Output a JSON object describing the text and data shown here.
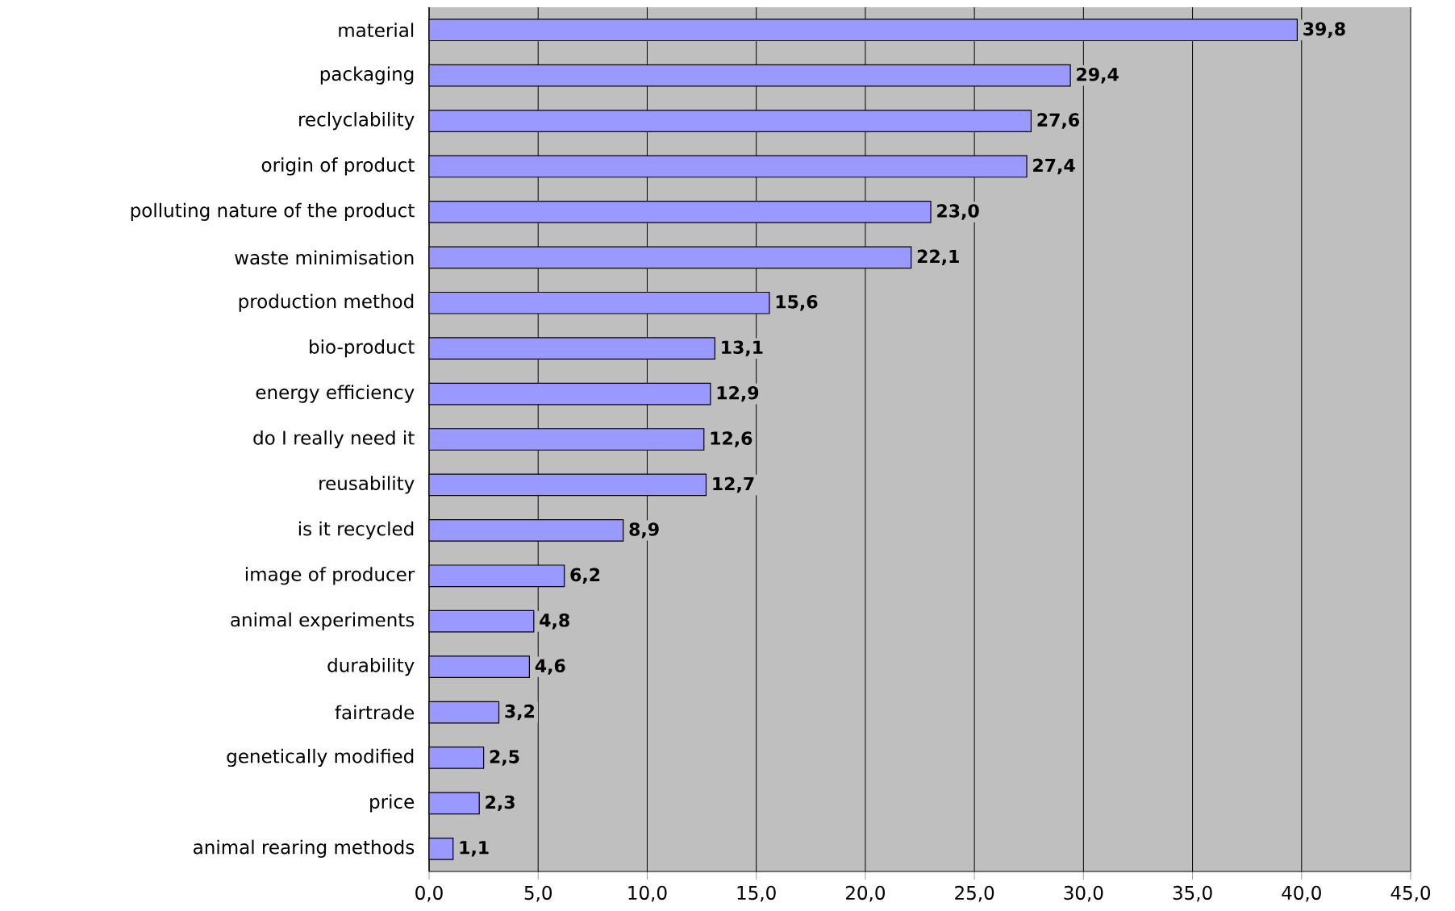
{
  "chart_data": {
    "type": "bar",
    "orientation": "horizontal",
    "color": "#9999ff",
    "categories": [
      "material",
      "packaging",
      "reclyclability",
      "origin of product",
      "polluting nature of the product",
      "waste minimisation",
      "production method",
      "bio-product",
      "energy efficiency",
      "do I really need it",
      "reusability",
      "is it recycled",
      "image of producer",
      "animal experiments",
      "durability",
      "fairtrade",
      "genetically modified",
      "price",
      "animal rearing methods"
    ],
    "values": [
      39.8,
      29.4,
      27.6,
      27.4,
      23.0,
      22.1,
      15.6,
      13.1,
      12.9,
      12.6,
      12.7,
      8.9,
      6.2,
      4.8,
      4.6,
      3.2,
      2.5,
      2.3,
      1.1
    ],
    "value_labels": [
      "39,8",
      "29,4",
      "27,6",
      "27,4",
      "23,0",
      "22,1",
      "15,6",
      "13,1",
      "12,9",
      "12,6",
      "12,7",
      "8,9",
      "6,2",
      "4,8",
      "4,6",
      "3,2",
      "2,5",
      "2,3",
      "1,1"
    ],
    "xlim": [
      0,
      45
    ],
    "xticks": [
      {
        "value": 0,
        "label": "0,0"
      },
      {
        "value": 5,
        "label": "5,0"
      },
      {
        "value": 10,
        "label": "10,0"
      },
      {
        "value": 15,
        "label": "15,0"
      },
      {
        "value": 20,
        "label": "20,0"
      },
      {
        "value": 25,
        "label": "25,0"
      },
      {
        "value": 30,
        "label": "30,0"
      },
      {
        "value": 35,
        "label": "35,0"
      },
      {
        "value": 40,
        "label": "40,0"
      },
      {
        "value": 45,
        "label": "45,0"
      }
    ],
    "grid": "x"
  }
}
